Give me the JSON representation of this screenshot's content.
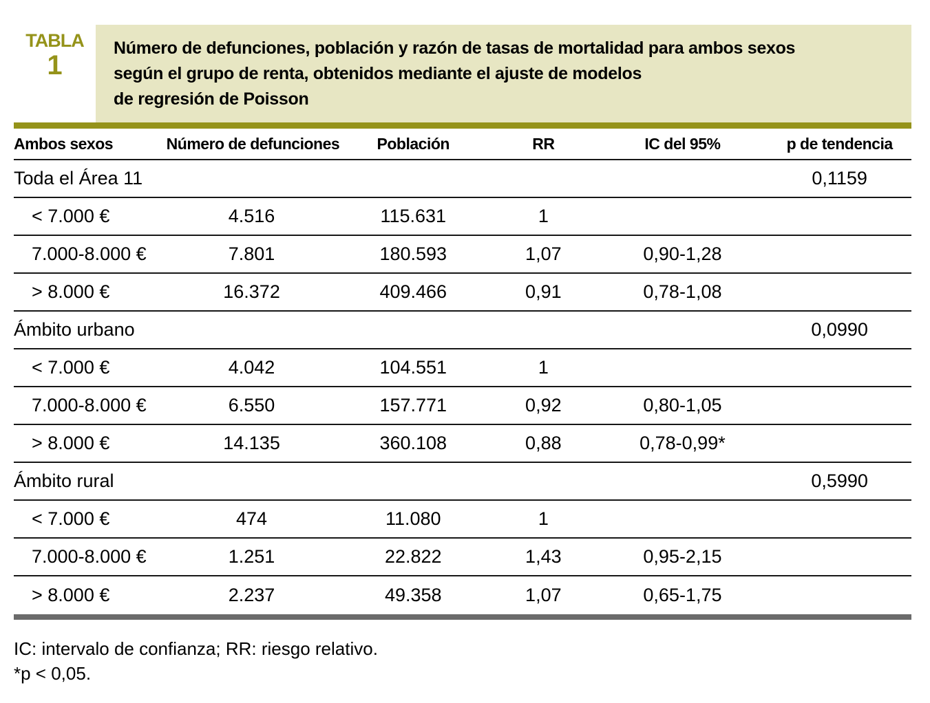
{
  "figure": {
    "label": "TABLA",
    "number": "1",
    "title_lines": [
      "Número de defunciones, población y razón de tasas de mortalidad para ambos sexos",
      "según el grupo de renta, obtenidos mediante el ajuste de modelos",
      "de regresión de Poisson"
    ]
  },
  "table": {
    "columns": [
      "Ambos sexos",
      "Número de defunciones",
      "Población",
      "RR",
      "IC del 95%",
      "p de tendencia"
    ],
    "rows": [
      {
        "label": "Toda el Área 11",
        "indent": false,
        "cells": [
          "",
          "",
          "",
          "",
          "0,1159"
        ]
      },
      {
        "label": "< 7.000 €",
        "indent": true,
        "cells": [
          "4.516",
          "115.631",
          "1",
          "",
          ""
        ]
      },
      {
        "label": "7.000-8.000 €",
        "indent": true,
        "cells": [
          "7.801",
          "180.593",
          "1,07",
          "0,90-1,28",
          ""
        ]
      },
      {
        "label": "> 8.000 €",
        "indent": true,
        "cells": [
          "16.372",
          "409.466",
          "0,91",
          "0,78-1,08",
          ""
        ]
      },
      {
        "label": "Ámbito urbano",
        "indent": false,
        "cells": [
          "",
          "",
          "",
          "",
          "0,0990"
        ]
      },
      {
        "label": "< 7.000 €",
        "indent": true,
        "cells": [
          "4.042",
          "104.551",
          "1",
          "",
          ""
        ]
      },
      {
        "label": "7.000-8.000 €",
        "indent": true,
        "cells": [
          "6.550",
          "157.771",
          "0,92",
          "0,80-1,05",
          ""
        ]
      },
      {
        "label": "> 8.000 €",
        "indent": true,
        "cells": [
          "14.135",
          "360.108",
          "0,88",
          "0,78-0,99*",
          ""
        ]
      },
      {
        "label": "Ámbito rural",
        "indent": false,
        "cells": [
          "",
          "",
          "",
          "",
          "0,5990"
        ]
      },
      {
        "label": "< 7.000 €",
        "indent": true,
        "cells": [
          "474",
          "11.080",
          "1",
          "",
          ""
        ]
      },
      {
        "label": "7.000-8.000 €",
        "indent": true,
        "cells": [
          "1.251",
          "22.822",
          "1,43",
          "0,95-2,15",
          ""
        ]
      },
      {
        "label": "> 8.000 €",
        "indent": true,
        "cells": [
          "2.237",
          "49.358",
          "1,07",
          "0,65-1,75",
          ""
        ]
      }
    ]
  },
  "footnotes": [
    "IC: intervalo de confianza; RR: riesgo relativo.",
    "*p < 0,05."
  ],
  "colors": {
    "accent_olive": "#95931a",
    "title_background": "#e7e6c3",
    "bottom_bar_gray": "#6b6b6b",
    "rule_black": "#161616"
  }
}
